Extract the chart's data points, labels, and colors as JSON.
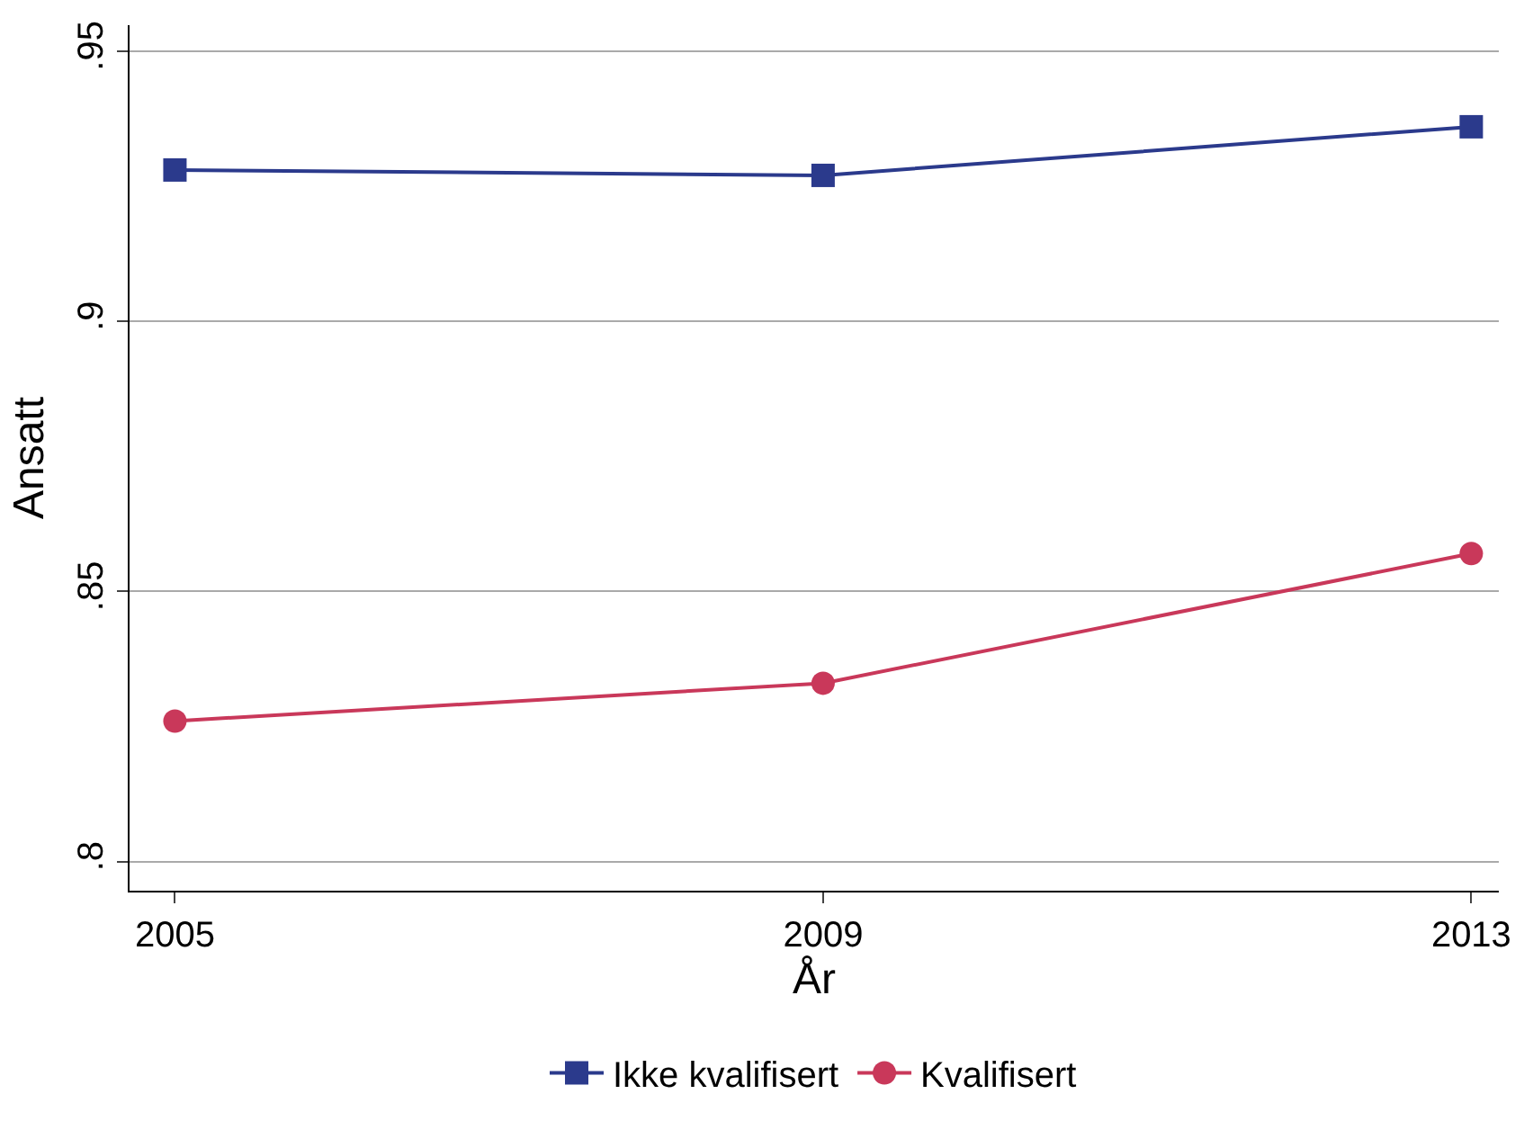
{
  "chart_data": {
    "type": "line",
    "xlabel": "År",
    "ylabel": "Ansatt",
    "x": [
      2005,
      2009,
      2013
    ],
    "series": [
      {
        "name": "Ikke kvalifisert",
        "color": "#2b3a8c",
        "marker": "square",
        "values": [
          0.928,
          0.927,
          0.936
        ]
      },
      {
        "name": "Kvalifisert",
        "color": "#c9385a",
        "marker": "circle",
        "values": [
          0.826,
          0.833,
          0.857
        ]
      }
    ],
    "xlim": [
      2004.72,
      2013.17
    ],
    "xticks": [
      2005,
      2009,
      2013
    ],
    "ylim": [
      0.7946,
      0.9548
    ],
    "yticks": [
      {
        "value": 0.8,
        "label": ".8"
      },
      {
        "value": 0.85,
        "label": ".85"
      },
      {
        "value": 0.9,
        "label": ".9"
      },
      {
        "value": 0.95,
        "label": ".95"
      }
    ],
    "grid": "y",
    "legend": "bottom",
    "line_style": "solid"
  }
}
